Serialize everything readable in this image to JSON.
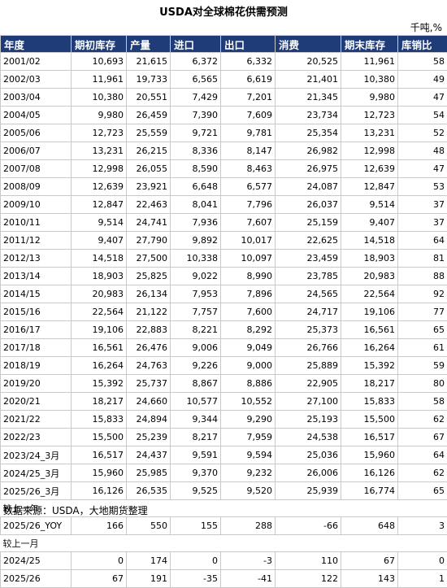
{
  "title": "USDA对全球棉花供需预测",
  "unit": "千吨,%",
  "headers": [
    "年度",
    "期初库存",
    "产量",
    "进口",
    "出口",
    "消费",
    "期末库存",
    "库销比"
  ],
  "rows": [
    [
      "2001/02",
      "10,693",
      "21,615",
      "6,372",
      "6,332",
      "20,525",
      "11,961",
      "58"
    ],
    [
      "2002/03",
      "11,961",
      "19,733",
      "6,565",
      "6,619",
      "21,401",
      "10,380",
      "49"
    ],
    [
      "2003/04",
      "10,380",
      "20,551",
      "7,429",
      "7,201",
      "21,345",
      "9,980",
      "47"
    ],
    [
      "2004/05",
      "9,980",
      "26,459",
      "7,390",
      "7,609",
      "23,734",
      "12,723",
      "54"
    ],
    [
      "2005/06",
      "12,723",
      "25,559",
      "9,721",
      "9,781",
      "25,354",
      "13,231",
      "52"
    ],
    [
      "2006/07",
      "13,231",
      "26,215",
      "8,336",
      "8,147",
      "26,982",
      "12,998",
      "48"
    ],
    [
      "2007/08",
      "12,998",
      "26,055",
      "8,590",
      "8,463",
      "26,975",
      "12,639",
      "47"
    ],
    [
      "2008/09",
      "12,639",
      "23,921",
      "6,648",
      "6,577",
      "24,087",
      "12,847",
      "53"
    ],
    [
      "2009/10",
      "12,847",
      "22,463",
      "8,041",
      "7,796",
      "26,037",
      "9,514",
      "37"
    ],
    [
      "2010/11",
      "9,514",
      "24,741",
      "7,936",
      "7,607",
      "25,159",
      "9,407",
      "37"
    ],
    [
      "2011/12",
      "9,407",
      "27,790",
      "9,892",
      "10,017",
      "22,625",
      "14,518",
      "64"
    ],
    [
      "2012/13",
      "14,518",
      "27,500",
      "10,338",
      "10,097",
      "23,459",
      "18,903",
      "81"
    ],
    [
      "2013/14",
      "18,903",
      "25,825",
      "9,022",
      "8,990",
      "23,785",
      "20,983",
      "88"
    ],
    [
      "2014/15",
      "20,983",
      "26,134",
      "7,953",
      "7,896",
      "24,565",
      "22,564",
      "92"
    ],
    [
      "2015/16",
      "22,564",
      "21,122",
      "7,757",
      "7,600",
      "24,717",
      "19,106",
      "77"
    ],
    [
      "2016/17",
      "19,106",
      "22,883",
      "8,221",
      "8,292",
      "25,373",
      "16,561",
      "65"
    ],
    [
      "2017/18",
      "16,561",
      "26,476",
      "9,006",
      "9,049",
      "26,766",
      "16,264",
      "61"
    ],
    [
      "2018/19",
      "16,264",
      "24,763",
      "9,226",
      "9,000",
      "25,889",
      "15,392",
      "59"
    ],
    [
      "2019/20",
      "15,392",
      "25,737",
      "8,867",
      "8,886",
      "22,905",
      "18,217",
      "80"
    ],
    [
      "2020/21",
      "18,217",
      "24,660",
      "10,577",
      "10,552",
      "27,100",
      "15,833",
      "58"
    ],
    [
      "2021/22",
      "15,833",
      "24,894",
      "9,344",
      "9,290",
      "25,193",
      "15,500",
      "62"
    ],
    [
      "2022/23",
      "15,500",
      "25,239",
      "8,217",
      "7,959",
      "24,538",
      "16,517",
      "67"
    ],
    [
      "2023/24_3月",
      "16,517",
      "24,437",
      "9,591",
      "9,594",
      "25,036",
      "15,960",
      "64"
    ],
    [
      "2024/25_3月",
      "15,960",
      "25,985",
      "9,370",
      "9,232",
      "26,006",
      "16,126",
      "62"
    ],
    [
      "2025/26_3月",
      "16,126",
      "26,535",
      "9,525",
      "9,520",
      "25,939",
      "16,774",
      "65"
    ]
  ],
  "yoy_label": "较上一年",
  "yoy_rows": [
    [
      "2025/26_YOY",
      "166",
      "550",
      "155",
      "288",
      "-66",
      "648",
      "3"
    ]
  ],
  "mom_label": "较上一月",
  "mom_rows": [
    [
      "2024/25",
      "0",
      "174",
      "0",
      "-3",
      "110",
      "67",
      "0"
    ],
    [
      "2025/26",
      "67",
      "191",
      "-35",
      "-41",
      "122",
      "143",
      "1"
    ]
  ],
  "source": "数据来源：USDA，大地期货整理"
}
